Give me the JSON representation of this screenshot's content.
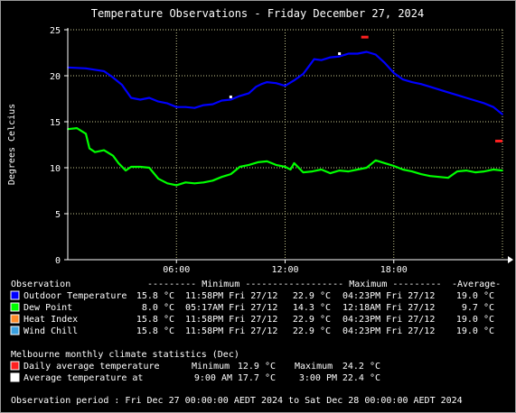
{
  "chart_data": {
    "type": "line",
    "title": "Temperature Observations - Friday December 27, 2024",
    "xlabel": "",
    "ylabel": "Degrees Celcius",
    "xlim": [
      0,
      24
    ],
    "ylim": [
      0,
      25
    ],
    "x_ticks": [
      {
        "x": 6,
        "label": "06:00"
      },
      {
        "x": 12,
        "label": "12:00"
      },
      {
        "x": 18,
        "label": "18:00"
      }
    ],
    "y_ticks": [
      0,
      5,
      10,
      15,
      20,
      25
    ],
    "grid": true,
    "series": [
      {
        "name": "Outdoor Temperature",
        "color": "#0000ff",
        "points": [
          [
            0,
            20.9
          ],
          [
            1,
            20.8
          ],
          [
            2,
            20.5
          ],
          [
            2.5,
            19.8
          ],
          [
            3,
            19.0
          ],
          [
            3.5,
            17.6
          ],
          [
            4,
            17.4
          ],
          [
            4.5,
            17.6
          ],
          [
            5,
            17.2
          ],
          [
            5.5,
            17.0
          ],
          [
            6,
            16.6
          ],
          [
            6.5,
            16.6
          ],
          [
            7,
            16.5
          ],
          [
            7.5,
            16.8
          ],
          [
            8,
            16.9
          ],
          [
            8.5,
            17.3
          ],
          [
            9,
            17.4
          ],
          [
            9.5,
            17.8
          ],
          [
            10,
            18.1
          ],
          [
            10.4,
            18.8
          ],
          [
            10.7,
            19.1
          ],
          [
            11,
            19.3
          ],
          [
            11.5,
            19.2
          ],
          [
            12,
            18.9
          ],
          [
            12.5,
            19.5
          ],
          [
            13,
            20.2
          ],
          [
            13.3,
            21.0
          ],
          [
            13.6,
            21.8
          ],
          [
            14,
            21.7
          ],
          [
            14.5,
            22.0
          ],
          [
            15,
            22.1
          ],
          [
            15.5,
            22.4
          ],
          [
            16,
            22.4
          ],
          [
            16.5,
            22.6
          ],
          [
            17,
            22.3
          ],
          [
            17.5,
            21.4
          ],
          [
            18,
            20.3
          ],
          [
            18.5,
            19.6
          ],
          [
            19,
            19.3
          ],
          [
            19.5,
            19.1
          ],
          [
            20,
            18.8
          ],
          [
            20.5,
            18.5
          ],
          [
            21,
            18.2
          ],
          [
            21.5,
            17.9
          ],
          [
            22,
            17.6
          ],
          [
            22.5,
            17.3
          ],
          [
            23,
            17.0
          ],
          [
            23.5,
            16.6
          ],
          [
            24,
            15.8
          ]
        ]
      },
      {
        "name": "Dew Point",
        "color": "#00ff00",
        "points": [
          [
            0,
            14.2
          ],
          [
            0.5,
            14.3
          ],
          [
            1,
            13.7
          ],
          [
            1.2,
            12.1
          ],
          [
            1.5,
            11.7
          ],
          [
            2,
            11.9
          ],
          [
            2.5,
            11.3
          ],
          [
            2.8,
            10.5
          ],
          [
            3,
            10.1
          ],
          [
            3.2,
            9.7
          ],
          [
            3.5,
            10.1
          ],
          [
            4,
            10.1
          ],
          [
            4.5,
            10.0
          ],
          [
            5,
            8.8
          ],
          [
            5.5,
            8.3
          ],
          [
            6,
            8.1
          ],
          [
            6.5,
            8.4
          ],
          [
            7,
            8.3
          ],
          [
            7.5,
            8.4
          ],
          [
            8,
            8.6
          ],
          [
            8.5,
            9.0
          ],
          [
            9,
            9.3
          ],
          [
            9.5,
            10.1
          ],
          [
            10,
            10.3
          ],
          [
            10.5,
            10.6
          ],
          [
            11,
            10.7
          ],
          [
            11.5,
            10.3
          ],
          [
            12,
            10.1
          ],
          [
            12.3,
            9.8
          ],
          [
            12.5,
            10.5
          ],
          [
            13,
            9.5
          ],
          [
            13.5,
            9.6
          ],
          [
            14,
            9.8
          ],
          [
            14.5,
            9.4
          ],
          [
            15,
            9.7
          ],
          [
            15.5,
            9.6
          ],
          [
            16,
            9.8
          ],
          [
            16.5,
            10.0
          ],
          [
            17,
            10.8
          ],
          [
            17.5,
            10.5
          ],
          [
            18,
            10.2
          ],
          [
            18.5,
            9.8
          ],
          [
            19,
            9.6
          ],
          [
            19.5,
            9.3
          ],
          [
            20,
            9.1
          ],
          [
            20.5,
            9.0
          ],
          [
            21,
            8.9
          ],
          [
            21.5,
            9.6
          ],
          [
            22,
            9.7
          ],
          [
            22.5,
            9.5
          ],
          [
            23,
            9.6
          ],
          [
            23.5,
            9.8
          ],
          [
            24,
            9.7
          ]
        ]
      }
    ],
    "markers": [
      {
        "name": "Daily average temperature maximum",
        "x": 16.4,
        "y": 24.2,
        "color": "#ff2020"
      },
      {
        "name": "Daily average temperature minimum",
        "x": 23.8,
        "y": 12.9,
        "color": "#ff2020"
      },
      {
        "name": "Average temperature at 9:00 AM",
        "x": 9,
        "y": 17.7,
        "color": "#ffffff"
      },
      {
        "name": "Average temperature at 3:00 PM",
        "x": 15,
        "y": 22.4,
        "color": "#ffffff"
      }
    ]
  },
  "legend": {
    "header": {
      "observation": "Observation",
      "minimum": "--------- Minimum ---------",
      "maximum": "--------- Maximum ---------",
      "average": "-Average-"
    },
    "rows": [
      {
        "label": "Outdoor Temperature",
        "color": "#0000ff",
        "min": "15.8 °C",
        "min_time": "11:58PM Fri 27/12",
        "max": "22.9 °C",
        "max_time": "04:23PM Fri 27/12",
        "avg": "19.0 °C"
      },
      {
        "label": "Dew Point",
        "color": "#00ff00",
        "min": "8.0 °C",
        "min_time": "05:17AM Fri 27/12",
        "max": "14.3 °C",
        "max_time": "12:18AM Fri 27/12",
        "avg": "9.7 °C"
      },
      {
        "label": "Heat Index",
        "color": "#ff8c2a",
        "min": "15.8 °C",
        "min_time": "11:58PM Fri 27/12",
        "max": "22.9 °C",
        "max_time": "04:23PM Fri 27/12",
        "avg": "19.0 °C"
      },
      {
        "label": "Wind Chill",
        "color": "#3aa0e0",
        "min": "15.8 °C",
        "min_time": "11:58PM Fri 27/12",
        "max": "22.9 °C",
        "max_time": "04:23PM Fri 27/12",
        "avg": "19.0 °C"
      }
    ]
  },
  "climate": {
    "heading": "Melbourne monthly climate statistics (Dec)",
    "daily_label": "Daily average temperature",
    "daily_min_label": "Minimum",
    "daily_min": "12.9 °C",
    "daily_max_label": "Maximum",
    "daily_max": "24.2 °C",
    "daily_color": "#ff2020",
    "avg_label": "Average temperature at",
    "avg_time1": "9:00 AM",
    "avg_val1": "17.7 °C",
    "avg_time2": "3:00 PM",
    "avg_val2": "22.4 °C",
    "avg_color": "#ffffff"
  },
  "observation_period": "Observation period : Fri Dec 27 00:00:00 AEDT 2024 to Sat Dec 28 00:00:00 AEDT 2024"
}
